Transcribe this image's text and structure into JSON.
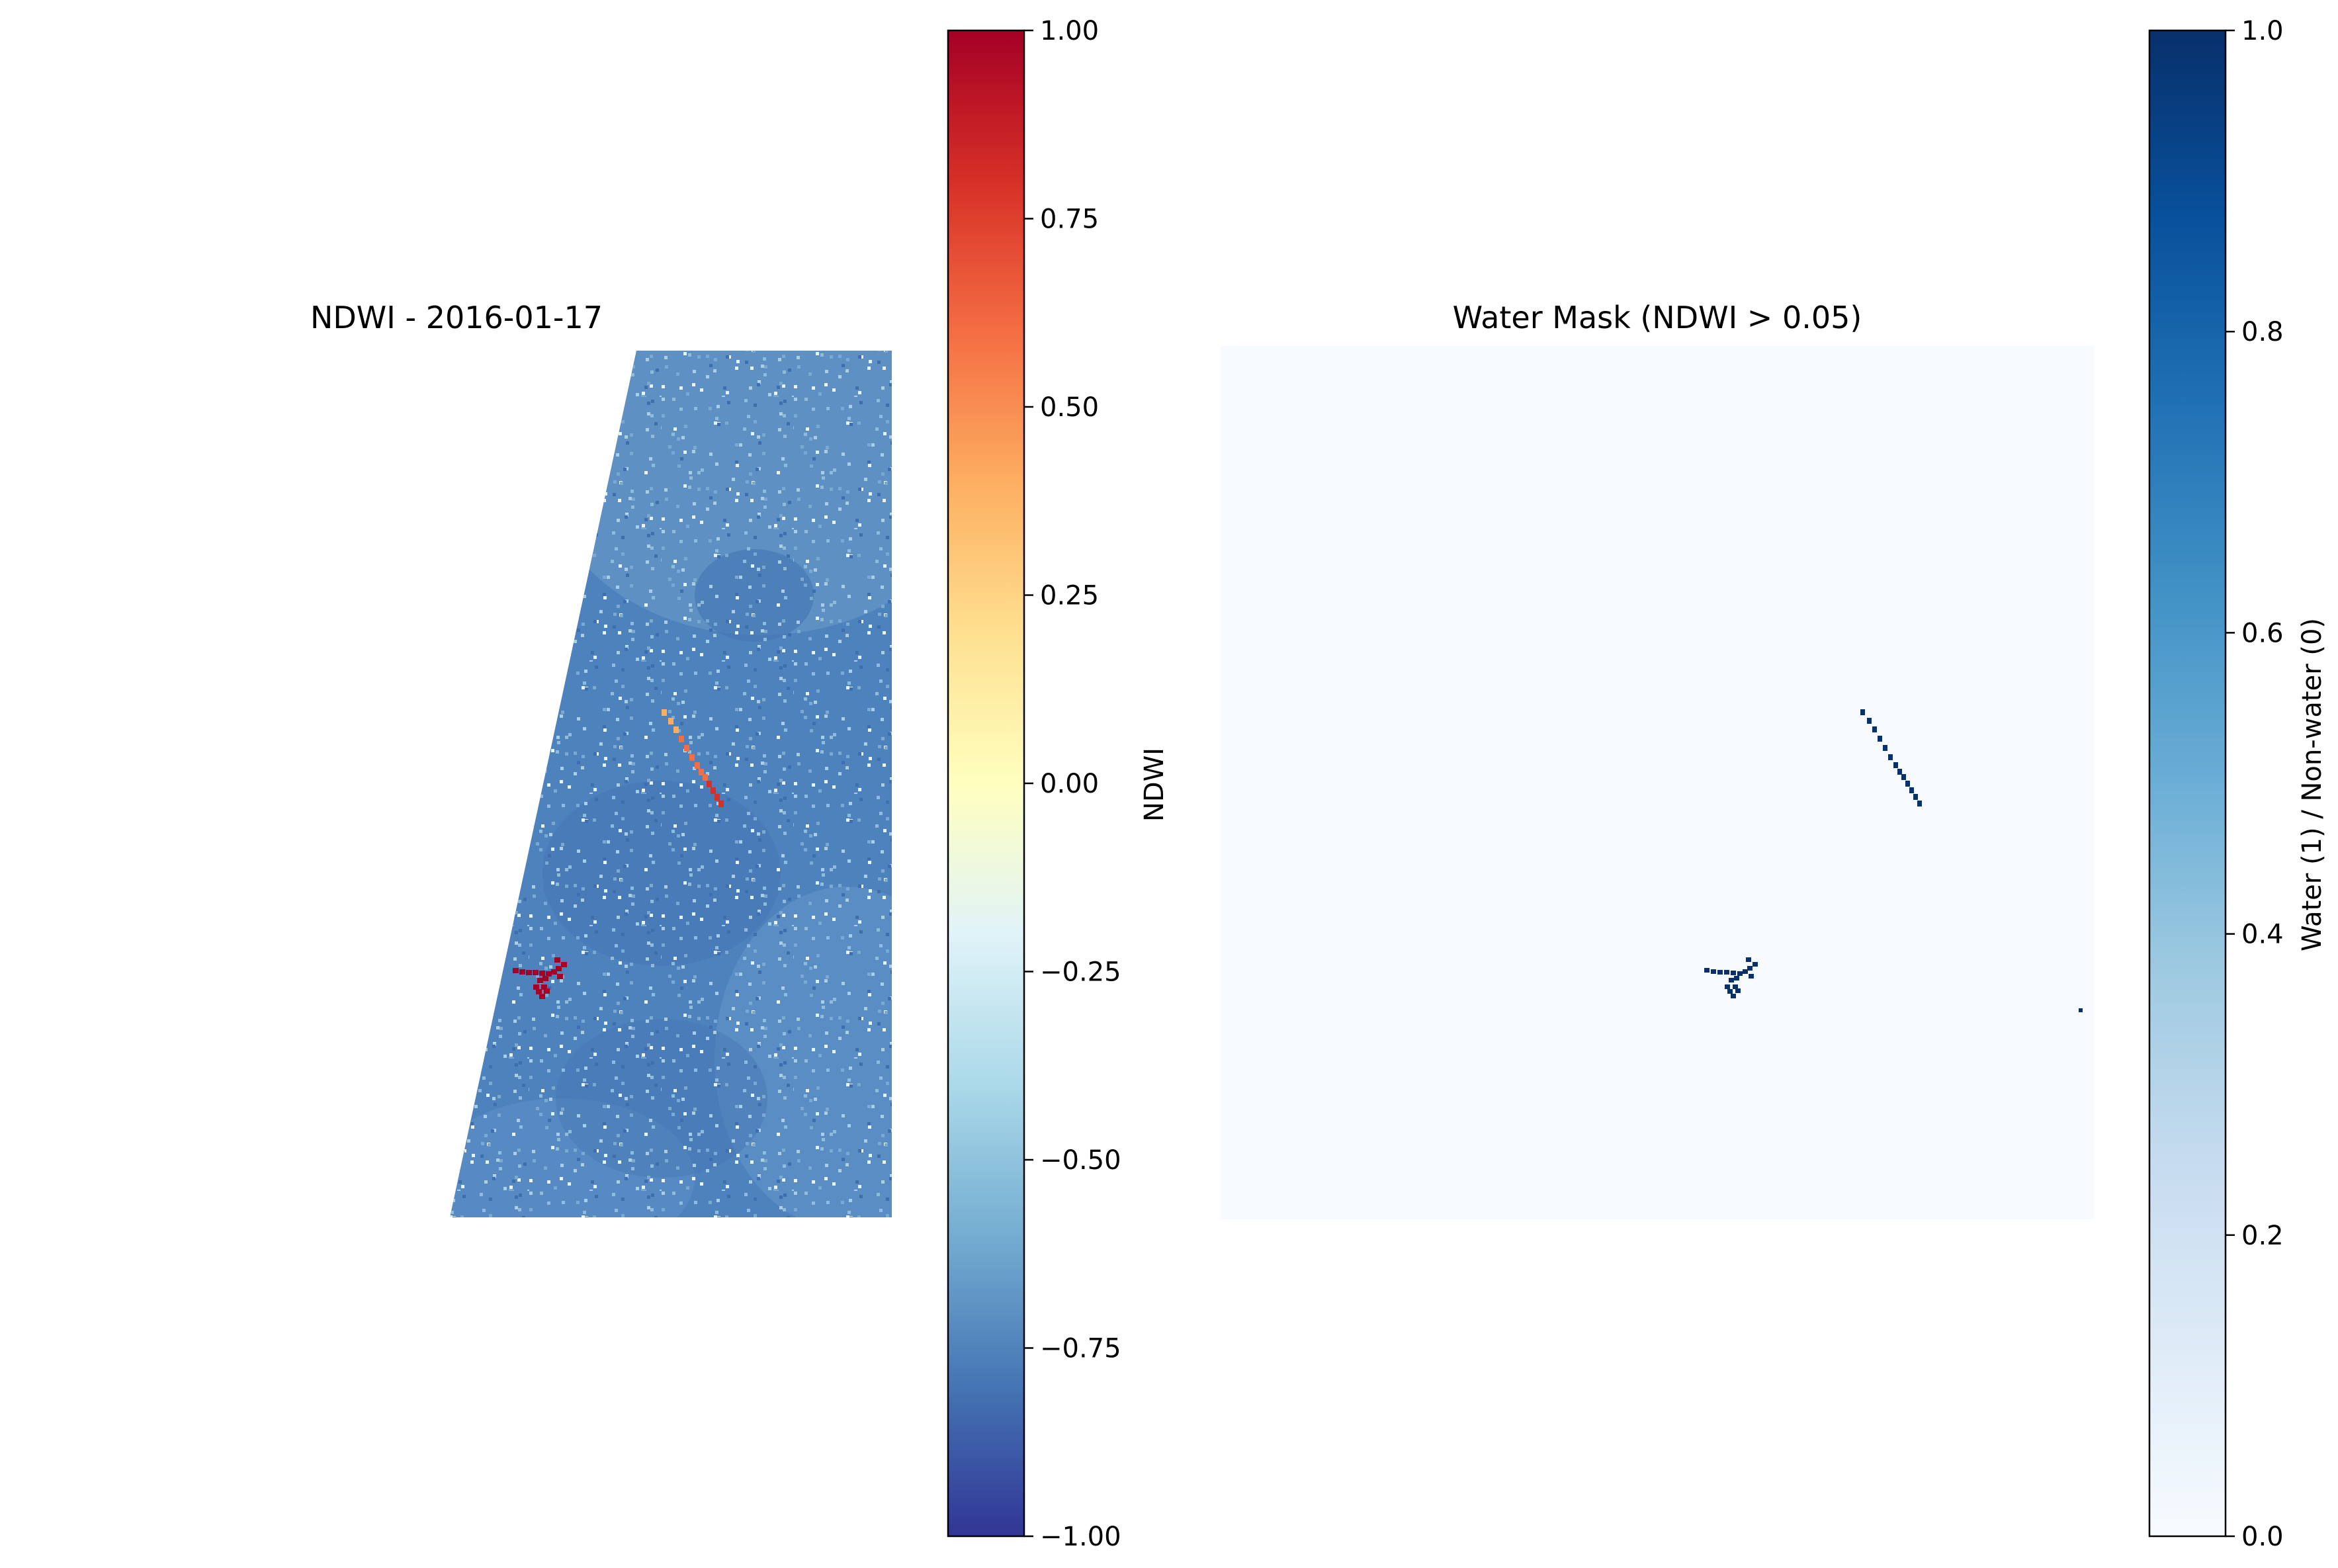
{
  "chart_data": [
    {
      "type": "heatmap",
      "title": "NDWI - 2016-01-17",
      "colormap": "RdYlBu",
      "colorbar": {
        "label": "NDWI",
        "range": [
          -1.0,
          1.0
        ],
        "ticks": [
          1.0,
          0.75,
          0.5,
          0.25,
          0.0,
          -0.25,
          -0.5,
          -0.75,
          -1.0
        ],
        "tick_labels": [
          "1.00",
          "0.75",
          "0.50",
          "0.25",
          "0.00",
          "−0.25",
          "−0.50",
          "−0.75",
          "−1.00"
        ],
        "colors": [
          "#a50026",
          "#d73027",
          "#f46d43",
          "#fdae61",
          "#fee090",
          "#ffffbf",
          "#e0f3f8",
          "#abd9e9",
          "#74add1",
          "#4575b4",
          "#313695"
        ]
      },
      "axis": "off",
      "background_value": -0.7,
      "features": [
        {
          "name": "stream",
          "ndwi_range": [
            0.1,
            0.95
          ]
        },
        {
          "name": "pond",
          "ndwi_range": [
            0.95,
            1.0
          ]
        }
      ]
    },
    {
      "type": "heatmap",
      "title": "Water Mask (NDWI > 0.05)",
      "colormap": "Blues",
      "colorbar": {
        "label": "Water (1) / Non-water (0)",
        "range": [
          0.0,
          1.0
        ],
        "ticks": [
          1.0,
          0.8,
          0.6,
          0.4,
          0.2,
          0.0
        ],
        "tick_labels": [
          "1.0",
          "0.8",
          "0.6",
          "0.4",
          "0.2",
          "0.0"
        ],
        "colors": [
          "#f7fbff",
          "#deebf7",
          "#c6dbef",
          "#9ecae1",
          "#6baed6",
          "#4292c6",
          "#2171b5",
          "#08519c",
          "#08306b"
        ]
      },
      "axis": "off",
      "background_value": 0,
      "features": [
        {
          "name": "stream",
          "value": 1
        },
        {
          "name": "pond",
          "value": 1
        },
        {
          "name": "speck",
          "value": 1
        }
      ]
    }
  ]
}
